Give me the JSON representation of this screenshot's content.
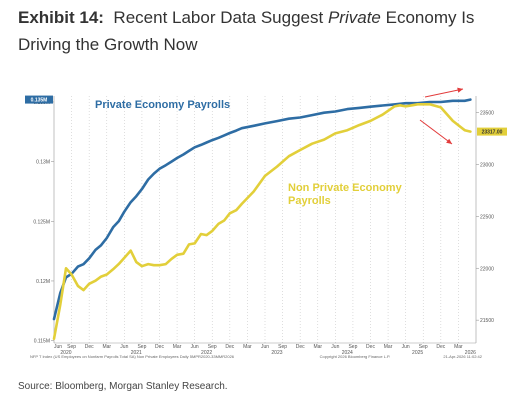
{
  "title": {
    "label": "Exhibit 14:",
    "text_before": "Recent Labor Data Suggest",
    "text_italic": "Private",
    "text_after": "Economy Is Driving the Growth Now"
  },
  "source": "Source: Bloomberg, Morgan Stanley Research.",
  "colors": {
    "private": "#2e6da4",
    "nonprivate": "#e2cf3a",
    "arrow": "#e23b3b",
    "axis_text": "#555555",
    "tag_left_bg": "#2e6da4",
    "tag_right_bg": "#e2cf3a"
  },
  "chart_data": {
    "type": "line",
    "legend_block": "NFP T Index (US Employees on Nonfarm Payrolls Total SA) Non Private Employees Daily 5MPR2020-33MMR2026",
    "copyright": "Copyright 2026 Bloomberg Finance L.P.",
    "timestamp": "21-Apr-2026 11:02:42",
    "x_ticks": [
      "Jun",
      "Sep",
      "Dec",
      "Mar",
      "Jun",
      "Sep",
      "Dec",
      "Mar",
      "Jun",
      "Sep",
      "Dec",
      "Mar",
      "Jun",
      "Sep",
      "Dec",
      "Mar",
      "Jun",
      "Sep",
      "Dec",
      "Mar",
      "Jun",
      "Sep",
      "Dec",
      "Mar"
    ],
    "x_years": [
      "2020",
      "2021",
      "2022",
      "2023",
      "2024",
      "2025",
      "2026"
    ],
    "xlim": [
      2020.33,
      2026.33
    ],
    "y_left": {
      "ticks": [
        "0.115M",
        "0.12M",
        "0.125M",
        "0.13M",
        "0.135M"
      ],
      "values": [
        0.115,
        0.12,
        0.125,
        0.13,
        0.135
      ],
      "lim": [
        0.1148,
        0.1355
      ]
    },
    "y_right": {
      "ticks": [
        "21500",
        "22000",
        "22500",
        "23000",
        "23500"
      ],
      "values": [
        21500,
        22000,
        22500,
        23000,
        23500
      ],
      "lim": [
        21280,
        23660
      ]
    },
    "series": [
      {
        "name": "Private Economy Payrolls",
        "axis": "left",
        "last_value_tag": "0.135M",
        "x": [
          2020.33,
          2020.42,
          2020.5,
          2020.58,
          2020.67,
          2020.75,
          2020.83,
          2020.92,
          2021.0,
          2021.08,
          2021.17,
          2021.25,
          2021.33,
          2021.42,
          2021.5,
          2021.58,
          2021.67,
          2021.75,
          2021.83,
          2021.92,
          2022.0,
          2022.08,
          2022.17,
          2022.25,
          2022.33,
          2022.42,
          2022.5,
          2022.58,
          2022.67,
          2022.75,
          2022.83,
          2022.92,
          2023.0,
          2023.17,
          2023.33,
          2023.5,
          2023.67,
          2023.83,
          2024.0,
          2024.17,
          2024.33,
          2024.5,
          2024.67,
          2024.83,
          2025.0,
          2025.17,
          2025.33,
          2025.5,
          2025.67,
          2025.83,
          2026.0,
          2026.17,
          2026.25
        ],
        "values": [
          0.1168,
          0.119,
          0.1203,
          0.1206,
          0.1212,
          0.1214,
          0.1219,
          0.1226,
          0.123,
          0.1236,
          0.1245,
          0.125,
          0.1258,
          0.1266,
          0.1271,
          0.1277,
          0.1285,
          0.129,
          0.1294,
          0.1297,
          0.13,
          0.1303,
          0.1306,
          0.1309,
          0.1312,
          0.1314,
          0.1316,
          0.1318,
          0.132,
          0.1322,
          0.1324,
          0.1326,
          0.1328,
          0.133,
          0.1332,
          0.1334,
          0.1336,
          0.1337,
          0.1339,
          0.1341,
          0.1342,
          0.1344,
          0.1345,
          0.1346,
          0.1347,
          0.1348,
          0.1349,
          0.1349,
          0.135,
          0.135,
          0.1351,
          0.1351,
          0.1352
        ]
      },
      {
        "name": "Non Private Economy Payrolls",
        "axis": "right",
        "last_value_tag": "23317.00",
        "x": [
          2020.33,
          2020.42,
          2020.5,
          2020.58,
          2020.67,
          2020.75,
          2020.83,
          2020.92,
          2021.0,
          2021.08,
          2021.17,
          2021.25,
          2021.33,
          2021.42,
          2021.5,
          2021.58,
          2021.67,
          2021.75,
          2021.83,
          2021.92,
          2022.0,
          2022.08,
          2022.17,
          2022.25,
          2022.33,
          2022.42,
          2022.5,
          2022.58,
          2022.67,
          2022.75,
          2022.83,
          2022.92,
          2023.0,
          2023.17,
          2023.33,
          2023.5,
          2023.67,
          2023.83,
          2024.0,
          2024.17,
          2024.33,
          2024.5,
          2024.67,
          2024.83,
          2025.0,
          2025.17,
          2025.25,
          2025.33,
          2025.42,
          2025.5,
          2025.67,
          2025.83,
          2026.0,
          2026.17,
          2026.25
        ],
        "values": [
          21320,
          21650,
          22000,
          21940,
          21830,
          21790,
          21850,
          21880,
          21920,
          21940,
          21990,
          22040,
          22100,
          22170,
          22060,
          22020,
          22040,
          22030,
          22030,
          22040,
          22090,
          22130,
          22140,
          22230,
          22240,
          22330,
          22320,
          22360,
          22430,
          22460,
          22530,
          22560,
          22620,
          22740,
          22890,
          22980,
          23080,
          23140,
          23200,
          23240,
          23300,
          23330,
          23380,
          23420,
          23480,
          23560,
          23570,
          23560,
          23570,
          23580,
          23580,
          23550,
          23420,
          23330,
          23317
        ]
      }
    ],
    "annotations": [
      {
        "text": "Private Economy Payrolls",
        "series": 0
      },
      {
        "text": "Non Private Economy\nPayrolls",
        "series": 1
      }
    ],
    "grid": "vertical dotted",
    "legend": "none"
  }
}
